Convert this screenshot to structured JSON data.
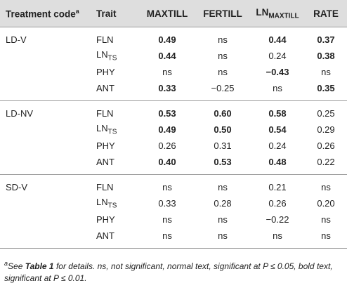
{
  "header": {
    "treatment_code": "Treatment code",
    "treatment_code_sup": "a",
    "trait": "Trait",
    "maxtill": "MAXTILL",
    "fertill": "FERTILL",
    "ln_prefix": "LN",
    "ln_sub": "MAXTILL",
    "rate": "RATE"
  },
  "groups": [
    {
      "code": "LD-V",
      "rows": [
        {
          "trait": "FLN",
          "trait_sub": "",
          "values": [
            "0.49",
            "ns",
            "0.44",
            "0.37"
          ],
          "bold": [
            true,
            false,
            true,
            true
          ]
        },
        {
          "trait": "LN",
          "trait_sub": "TS",
          "values": [
            "0.44",
            "ns",
            "0.24",
            "0.38"
          ],
          "bold": [
            true,
            false,
            false,
            true
          ]
        },
        {
          "trait": "PHY",
          "trait_sub": "",
          "values": [
            "ns",
            "ns",
            "−0.43",
            "ns"
          ],
          "bold": [
            false,
            false,
            true,
            false
          ]
        },
        {
          "trait": "ANT",
          "trait_sub": "",
          "values": [
            "0.33",
            "−0.25",
            "ns",
            "0.35"
          ],
          "bold": [
            true,
            false,
            false,
            true
          ]
        }
      ]
    },
    {
      "code": "LD-NV",
      "rows": [
        {
          "trait": "FLN",
          "trait_sub": "",
          "values": [
            "0.53",
            "0.60",
            "0.58",
            "0.25"
          ],
          "bold": [
            true,
            true,
            true,
            false
          ]
        },
        {
          "trait": "LN",
          "trait_sub": "TS",
          "values": [
            "0.49",
            "0.50",
            "0.54",
            "0.29"
          ],
          "bold": [
            true,
            true,
            true,
            false
          ]
        },
        {
          "trait": "PHY",
          "trait_sub": "",
          "values": [
            "0.26",
            "0.31",
            "0.24",
            "0.26"
          ],
          "bold": [
            false,
            false,
            false,
            false
          ]
        },
        {
          "trait": "ANT",
          "trait_sub": "",
          "values": [
            "0.40",
            "0.53",
            "0.48",
            "0.22"
          ],
          "bold": [
            true,
            true,
            true,
            false
          ]
        }
      ]
    },
    {
      "code": "SD-V",
      "rows": [
        {
          "trait": "FLN",
          "trait_sub": "",
          "values": [
            "ns",
            "ns",
            "0.21",
            "ns"
          ],
          "bold": [
            false,
            false,
            false,
            false
          ]
        },
        {
          "trait": "LN",
          "trait_sub": "TS",
          "values": [
            "0.33",
            "0.28",
            "0.26",
            "0.20"
          ],
          "bold": [
            false,
            false,
            false,
            false
          ]
        },
        {
          "trait": "PHY",
          "trait_sub": "",
          "values": [
            "ns",
            "ns",
            "−0.22",
            "ns"
          ],
          "bold": [
            false,
            false,
            false,
            false
          ]
        },
        {
          "trait": "ANT",
          "trait_sub": "",
          "values": [
            "ns",
            "ns",
            "ns",
            "ns"
          ],
          "bold": [
            false,
            false,
            false,
            false
          ]
        }
      ]
    }
  ],
  "footnote": {
    "sup": "a",
    "see": "See ",
    "table_ref": "Table 1",
    "rest": " for details. ns, not significant, normal text, significant at P ≤ 0.05, bold text, significant at P ≤ 0.01."
  }
}
